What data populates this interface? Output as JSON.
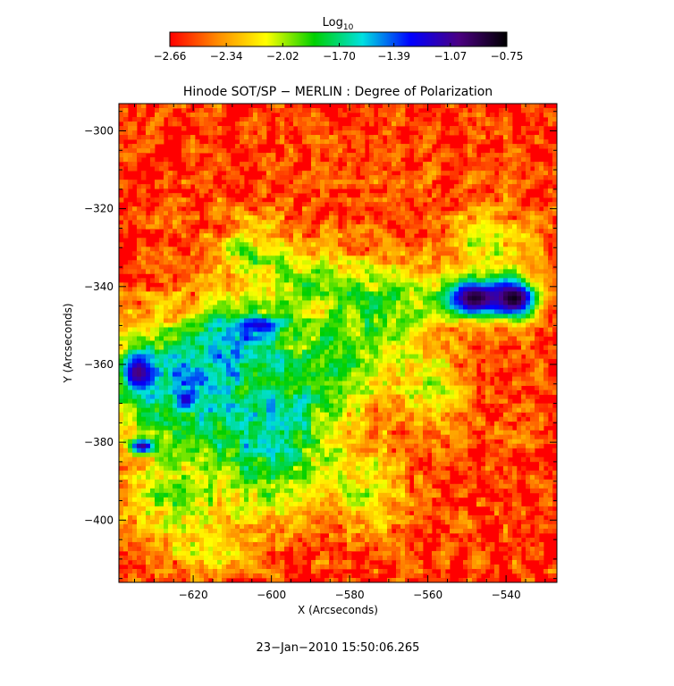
{
  "chart_data": {
    "type": "heatmap",
    "title": "Hinode SOT/SP − MERLIN : Degree of Polarization",
    "xlabel": "X (Arcseconds)",
    "ylabel": "Y (Arcseconds)",
    "xlim": [
      -639,
      -527
    ],
    "ylim": [
      -416,
      -293
    ],
    "x_ticks": [
      -620,
      -600,
      -580,
      -560,
      -540
    ],
    "y_ticks": [
      -300,
      -320,
      -340,
      -360,
      -380,
      -400
    ],
    "x_tick_labels": [
      "−620",
      "−600",
      "−580",
      "−560",
      "−540"
    ],
    "y_tick_labels": [
      "−300",
      "−320",
      "−340",
      "−360",
      "−380",
      "−400"
    ],
    "colorbar": {
      "label_base": "Log",
      "label_sub": "10",
      "range": [
        -2.66,
        -0.75
      ],
      "tick_values": [
        -2.66,
        -2.34,
        -2.02,
        -1.7,
        -1.39,
        -1.07,
        -0.75
      ],
      "tick_labels": [
        "−2.66",
        "−2.34",
        "−2.02",
        "−1.70",
        "−1.39",
        "−1.07",
        "−0.75"
      ],
      "colormap": [
        "#ff0000",
        "#ff8c00",
        "#ffff00",
        "#00d000",
        "#00e0e0",
        "#0000ff",
        "#4b0082",
        "#000000"
      ]
    },
    "strong_regions": [
      {
        "x": -548,
        "y": -343,
        "rx": 8,
        "ry": 5,
        "value": -0.85
      },
      {
        "x": -538,
        "y": -343,
        "rx": 6,
        "ry": 5,
        "value": -0.8
      },
      {
        "x": -634,
        "y": -362,
        "rx": 4,
        "ry": 5,
        "value": -1.0
      },
      {
        "x": -633,
        "y": -381,
        "rx": 3,
        "ry": 2,
        "value": -1.05
      },
      {
        "x": -622,
        "y": -369,
        "rx": 2,
        "ry": 2,
        "value": -1.15
      },
      {
        "x": -603,
        "y": -350,
        "rx": 6,
        "ry": 2,
        "value": -1.2
      }
    ],
    "grid": false,
    "timestamp": "23−Jan−2010 15:50:06.265"
  }
}
